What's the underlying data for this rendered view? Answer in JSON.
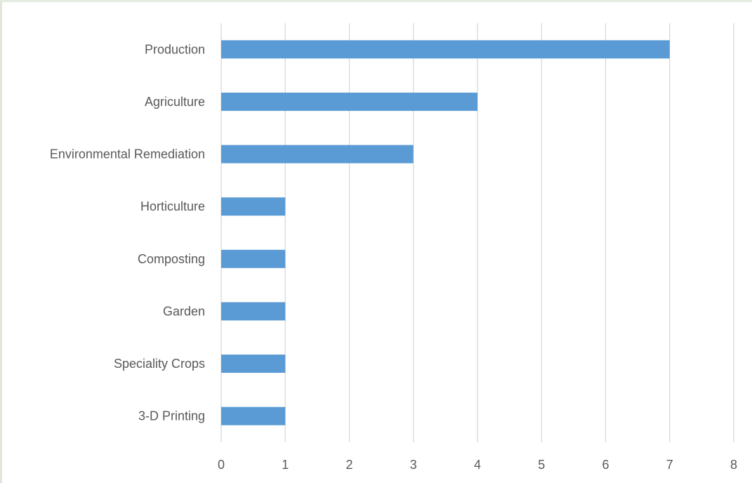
{
  "chart_data": {
    "type": "bar",
    "orientation": "horizontal",
    "categories": [
      "Production",
      "Agriculture",
      "Environmental Remediation",
      "Horticulture",
      "Composting",
      "Garden",
      "Speciality Crops",
      "3-D Printing"
    ],
    "values": [
      7,
      4,
      3,
      1,
      1,
      1,
      1,
      1
    ],
    "title": "",
    "xlabel": "",
    "ylabel": "",
    "xlim": [
      0,
      8
    ],
    "xticks": [
      0,
      1,
      2,
      3,
      4,
      5,
      6,
      7,
      8
    ],
    "grid": "vertical",
    "legend": "none",
    "bar_color": "#5B9BD5",
    "grid_color": "#D9D9D9",
    "text_color": "#595959"
  }
}
